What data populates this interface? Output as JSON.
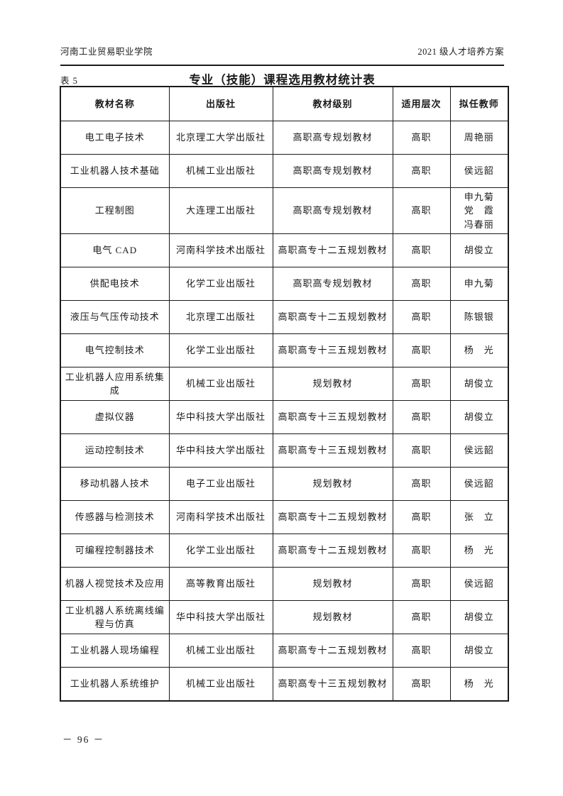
{
  "page": {
    "header_left": "河南工业贸易职业学院",
    "header_right": "2021 级人才培养方案",
    "table_label": "表 5",
    "title": "专业（技能）课程选用教材统计表",
    "page_number": "－ 96 －"
  },
  "table": {
    "columns": [
      "教材名称",
      "出版社",
      "教材级别",
      "适用层次",
      "拟任教师"
    ],
    "rows": [
      {
        "name": "电工电子技术",
        "publisher": "北京理工大学出版社",
        "level": "高职高专规划教材",
        "layer": "高职",
        "teacher": "周艳丽"
      },
      {
        "name": "工业机器人技术基础",
        "publisher": "机械工业出版社",
        "level": "高职高专规划教材",
        "layer": "高职",
        "teacher": "侯远韶"
      },
      {
        "name": "工程制图",
        "publisher": "大连理工出版社",
        "level": "高职高专规划教材",
        "layer": "高职",
        "teacher": "申九菊\n党　霞\n冯春丽"
      },
      {
        "name": "电气 CAD",
        "publisher": "河南科学技术出版社",
        "level": "高职高专十二五规划教材",
        "layer": "高职",
        "teacher": "胡俊立"
      },
      {
        "name": "供配电技术",
        "publisher": "化学工业出版社",
        "level": "高职高专规划教材",
        "layer": "高职",
        "teacher": "申九菊"
      },
      {
        "name": "液压与气压传动技术",
        "publisher": "北京理工出版社",
        "level": "高职高专十二五规划教材",
        "layer": "高职",
        "teacher": "陈银银"
      },
      {
        "name": "电气控制技术",
        "publisher": "化学工业出版社",
        "level": "高职高专十三五规划教材",
        "layer": "高职",
        "teacher": "杨　光"
      },
      {
        "name": "工业机器人应用系统集成",
        "publisher": "机械工业出版社",
        "level": "规划教材",
        "layer": "高职",
        "teacher": "胡俊立"
      },
      {
        "name": "虚拟仪器",
        "publisher": "华中科技大学出版社",
        "level": "高职高专十三五规划教材",
        "layer": "高职",
        "teacher": "胡俊立"
      },
      {
        "name": "运动控制技术",
        "publisher": "华中科技大学出版社",
        "level": "高职高专十三五规划教材",
        "layer": "高职",
        "teacher": "侯远韶"
      },
      {
        "name": "移动机器人技术",
        "publisher": "电子工业出版社",
        "level": "规划教材",
        "layer": "高职",
        "teacher": "侯远韶"
      },
      {
        "name": "传感器与检测技术",
        "publisher": "河南科学技术出版社",
        "level": "高职高专十二五规划教材",
        "layer": "高职",
        "teacher": "张　立"
      },
      {
        "name": "可编程控制器技术",
        "publisher": "化学工业出版社",
        "level": "高职高专十二五规划教材",
        "layer": "高职",
        "teacher": "杨　光"
      },
      {
        "name": "机器人视觉技术及应用",
        "publisher": "高等教育出版社",
        "level": "规划教材",
        "layer": "高职",
        "teacher": "侯远韶"
      },
      {
        "name": "工业机器人系统离线编程与仿真",
        "publisher": "华中科技大学出版社",
        "level": "规划教材",
        "layer": "高职",
        "teacher": "胡俊立"
      },
      {
        "name": "工业机器人现场编程",
        "publisher": "机械工业出版社",
        "level": "高职高专十二五规划教材",
        "layer": "高职",
        "teacher": "胡俊立"
      },
      {
        "name": "工业机器人系统维护",
        "publisher": "机械工业出版社",
        "level": "高职高专十三五规划教材",
        "layer": "高职",
        "teacher": "杨　光"
      }
    ]
  }
}
